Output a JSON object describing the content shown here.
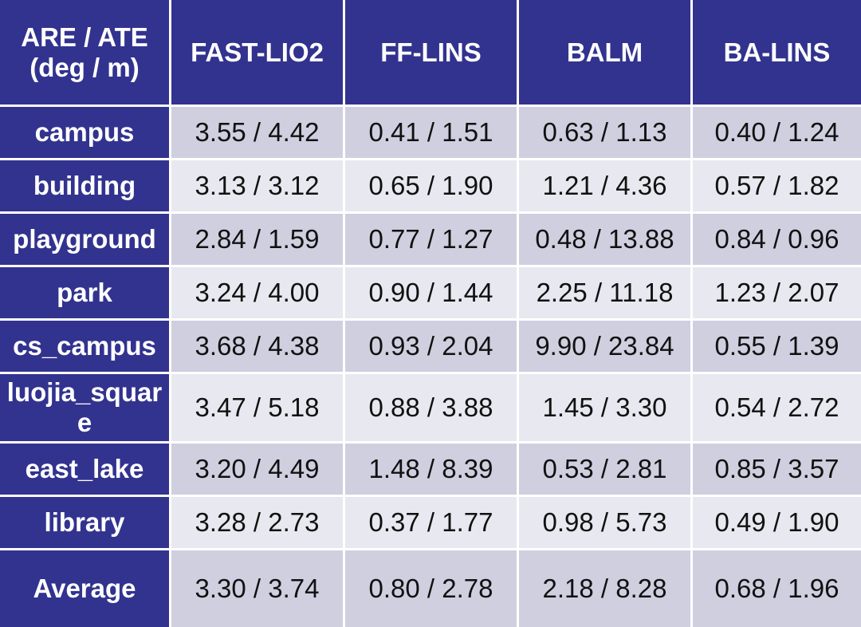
{
  "table": {
    "header": [
      [
        "ARE / ATE",
        "(deg / m)"
      ],
      "FAST-LIO2",
      "FF-LINS",
      "BALM",
      "BA-LINS"
    ],
    "rows": [
      [
        "campus",
        "3.55 / 4.42",
        "0.41 / 1.51",
        "0.63 / 1.13",
        "0.40 / 1.24"
      ],
      [
        "building",
        "3.13 / 3.12",
        "0.65 / 1.90",
        "1.21 / 4.36",
        "0.57 / 1.82"
      ],
      [
        "playground",
        "2.84 / 1.59",
        "0.77 / 1.27",
        "0.48 / 13.88",
        "0.84 / 0.96"
      ],
      [
        "park",
        "3.24 / 4.00",
        "0.90 / 1.44",
        "2.25 / 11.18",
        "1.23 / 2.07"
      ],
      [
        "cs_campus",
        "3.68 / 4.38",
        "0.93 / 2.04",
        "9.90 / 23.84",
        "0.55 / 1.39"
      ],
      [
        "luojia_square",
        "3.47 / 5.18",
        "0.88 / 3.88",
        "1.45 / 3.30",
        "0.54 / 2.72"
      ],
      [
        "east_lake",
        "3.20 / 4.49",
        "1.48 / 8.39",
        "0.53 / 2.81",
        "0.85 / 3.57"
      ],
      [
        "library",
        "3.28 / 2.73",
        "0.37 / 1.77",
        "0.98 / 5.73",
        "0.49 / 1.90"
      ],
      [
        "Average",
        "3.30 / 3.74",
        "0.80 / 2.78",
        "2.18 / 8.28",
        "0.68 / 1.96"
      ]
    ]
  }
}
